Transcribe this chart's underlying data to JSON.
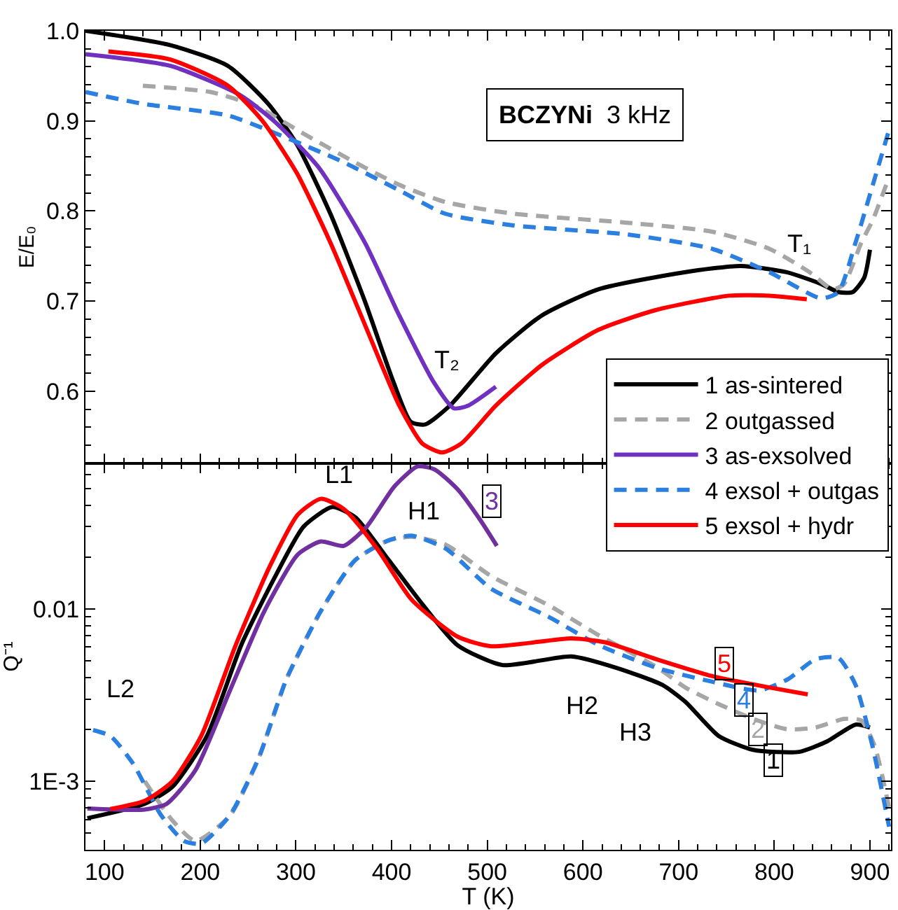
{
  "chart_data": [
    {
      "type": "line",
      "ylabel": "E/E₀",
      "xlim": [
        80,
        922
      ],
      "xticks": [
        100,
        200,
        300,
        400,
        500,
        600,
        700,
        800,
        900
      ],
      "ylim": [
        0.52,
        1.0
      ],
      "yticks": [
        0.6,
        0.7,
        0.8,
        0.9,
        {
          "value": 1.0,
          "label": "1.0"
        }
      ],
      "tick_labels": "y",
      "legend": "bottom right",
      "marker": "none",
      "annotations": [
        "BCZYNi 3 kHz",
        "T₁",
        "T₂"
      ],
      "series": [
        {
          "name": "1 as-sintered",
          "color": "#000000",
          "line_style": "solid",
          "x": [
            80,
            169,
            229,
            271,
            301,
            336,
            372,
            402,
            420,
            435,
            461,
            509,
            557,
            616,
            706,
            765,
            813,
            849,
            867,
            882,
            894,
            900
          ],
          "values": [
            1.0,
            0.984,
            0.961,
            0.919,
            0.874,
            0.797,
            0.7,
            0.61,
            0.566,
            0.563,
            0.584,
            0.642,
            0.684,
            0.713,
            0.732,
            0.739,
            0.732,
            0.719,
            0.71,
            0.71,
            0.726,
            0.757
          ]
        },
        {
          "name": "2 outgassed",
          "color": "#a6a6a6",
          "line_style": "dashed",
          "x": [
            140,
            211,
            259,
            306,
            360,
            408,
            456,
            527,
            646,
            735,
            795,
            837,
            861,
            873,
            891,
            903,
            918
          ],
          "values": [
            0.939,
            0.932,
            0.916,
            0.887,
            0.855,
            0.829,
            0.81,
            0.797,
            0.787,
            0.777,
            0.758,
            0.732,
            0.713,
            0.719,
            0.765,
            0.79,
            0.832
          ]
        },
        {
          "name": "3 as-exsolved",
          "color": "#7030c0",
          "line_style": "solid",
          "x": [
            80,
            169,
            241,
            277,
            324,
            372,
            408,
            444,
            465,
            480,
            509
          ],
          "values": [
            0.974,
            0.961,
            0.929,
            0.9,
            0.848,
            0.765,
            0.684,
            0.61,
            0.581,
            0.584,
            0.605
          ]
        },
        {
          "name": "4 exsol + outgas",
          "color": "#2a7fe0",
          "line_style": "dashed",
          "x": [
            80,
            140,
            229,
            277,
            348,
            408,
            456,
            527,
            646,
            735,
            795,
            849,
            867,
            885,
            903,
            920
          ],
          "values": [
            0.932,
            0.919,
            0.906,
            0.887,
            0.855,
            0.823,
            0.797,
            0.784,
            0.774,
            0.758,
            0.732,
            0.703,
            0.71,
            0.765,
            0.829,
            0.89
          ]
        },
        {
          "name": "5 exsol + hydr",
          "color": "#ff0000",
          "line_style": "solid",
          "x": [
            104,
            169,
            229,
            265,
            301,
            336,
            372,
            408,
            432,
            453,
            473,
            509,
            557,
            616,
            676,
            753,
            795,
            834
          ],
          "values": [
            0.977,
            0.968,
            0.939,
            0.9,
            0.842,
            0.765,
            0.674,
            0.584,
            0.542,
            0.532,
            0.542,
            0.584,
            0.629,
            0.668,
            0.69,
            0.706,
            0.706,
            0.702
          ]
        }
      ]
    },
    {
      "type": "line",
      "xlabel": "T (K)",
      "ylabel": "Q⁻¹",
      "log": "y",
      "xlim": [
        80,
        922
      ],
      "xticks": [
        100,
        200,
        300,
        400,
        500,
        600,
        700,
        800,
        900
      ],
      "ylim": [
        0.0004,
        0.07
      ],
      "yticks": [
        {
          "value": 0.01,
          "label": "0.01"
        },
        {
          "value": 0.001,
          "label": "1E-3"
        }
      ],
      "marker": "none",
      "annotations": [
        "L1",
        "L2",
        "H1",
        "H2",
        "H3",
        {
          "text": "3",
          "x": 505,
          "y": 0.042
        },
        {
          "text": "5",
          "x": 748,
          "y": 0.0048
        },
        {
          "text": "4",
          "x": 768,
          "y": 0.00295
        },
        {
          "text": "2",
          "x": 783,
          "y": 0.002
        },
        {
          "text": "1",
          "x": 799,
          "y": 0.00132
        }
      ],
      "series": [
        {
          "color": "#000000",
          "line_style": "solid",
          "x": [
            82,
            142,
            171,
            207,
            243,
            278,
            308,
            338,
            362,
            397,
            433,
            469,
            516,
            588,
            635,
            683,
            707,
            742,
            778,
            826,
            855,
            885,
            900
          ],
          "values": [
            0.00061,
            0.00074,
            0.00093,
            0.00183,
            0.0062,
            0.0153,
            0.03,
            0.039,
            0.034,
            0.0192,
            0.0105,
            0.00615,
            0.00472,
            0.0053,
            0.00455,
            0.00362,
            0.00289,
            0.00183,
            0.00152,
            0.00148,
            0.0017,
            0.00213,
            0.00205
          ]
        },
        {
          "color": "#a6a6a6",
          "line_style": "dashed",
          "x": [
            142,
            170,
            195,
            231,
            261,
            290,
            326,
            362,
            397,
            421,
            457,
            504,
            564,
            617,
            677,
            707,
            742,
            778,
            814,
            843,
            873,
            891,
            905,
            920
          ],
          "values": [
            0.001,
            0.0006,
            0.00045,
            0.00063,
            0.00136,
            0.0039,
            0.0097,
            0.0192,
            0.025,
            0.0262,
            0.0235,
            0.0155,
            0.0105,
            0.007,
            0.0046,
            0.0035,
            0.0028,
            0.0023,
            0.002,
            0.00205,
            0.0023,
            0.00225,
            0.0016,
            0.0007
          ]
        },
        {
          "color": "#7030a0",
          "line_style": "solid",
          "x": [
            82,
            142,
            165,
            195,
            231,
            267,
            302,
            326,
            350,
            374,
            403,
            427,
            445,
            469,
            493,
            510
          ],
          "values": [
            0.000695,
            0.000685,
            0.00074,
            0.00116,
            0.00336,
            0.0097,
            0.0207,
            0.0246,
            0.0232,
            0.03,
            0.0514,
            0.067,
            0.0644,
            0.0494,
            0.0326,
            0.0232
          ]
        },
        {
          "color": "#2a7fe0",
          "line_style": "dashed",
          "x": [
            88,
            106,
            130,
            159,
            183,
            201,
            231,
            261,
            290,
            326,
            362,
            397,
            421,
            457,
            504,
            564,
            617,
            677,
            736,
            784,
            814,
            843,
            867,
            885,
            903,
            920
          ],
          "values": [
            0.00198,
            0.00183,
            0.00126,
            0.000635,
            0.00045,
            0.000435,
            0.000635,
            0.00136,
            0.0039,
            0.0097,
            0.0192,
            0.025,
            0.0266,
            0.0223,
            0.0131,
            0.009,
            0.00615,
            0.00455,
            0.00377,
            0.00336,
            0.0039,
            0.0051,
            0.0052,
            0.00362,
            0.00157,
            0.000545
          ]
        },
        {
          "color": "#ff0000",
          "line_style": "solid",
          "x": [
            106,
            142,
            171,
            201,
            237,
            273,
            302,
            326,
            350,
            385,
            421,
            469,
            504,
            588,
            623,
            677,
            736,
            796,
            835
          ],
          "values": [
            0.00069,
            0.00077,
            0.001,
            0.00183,
            0.00615,
            0.0178,
            0.0352,
            0.0435,
            0.038,
            0.0223,
            0.0113,
            0.0069,
            0.00607,
            0.00674,
            0.0064,
            0.0051,
            0.00406,
            0.00349,
            0.00319
          ]
        }
      ]
    }
  ]
}
